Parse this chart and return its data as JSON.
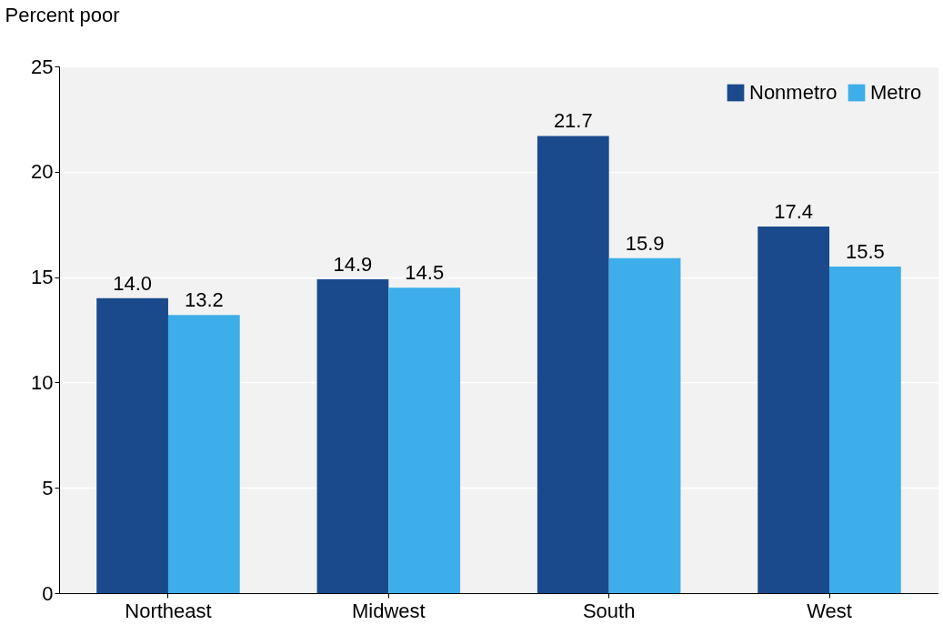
{
  "chart_data": {
    "type": "bar",
    "ylabel": "Percent poor",
    "categories": [
      "Northeast",
      "Midwest",
      "South",
      "West"
    ],
    "series": [
      {
        "name": "Nonmetro",
        "color": "#1b4a8c",
        "values": [
          14.0,
          14.9,
          21.7,
          17.4
        ],
        "value_labels": [
          "14.0",
          "14.9",
          "21.7",
          "17.4"
        ]
      },
      {
        "name": "Metro",
        "color": "#3daee9",
        "values": [
          13.2,
          14.5,
          15.9,
          15.5
        ],
        "value_labels": [
          "13.2",
          "14.5",
          "15.9",
          "15.5"
        ]
      }
    ],
    "ylim": [
      0,
      25
    ],
    "yticks": [
      0,
      5,
      10,
      15,
      20,
      25
    ],
    "grid": "y",
    "legend": "top right",
    "data_labels": true
  }
}
